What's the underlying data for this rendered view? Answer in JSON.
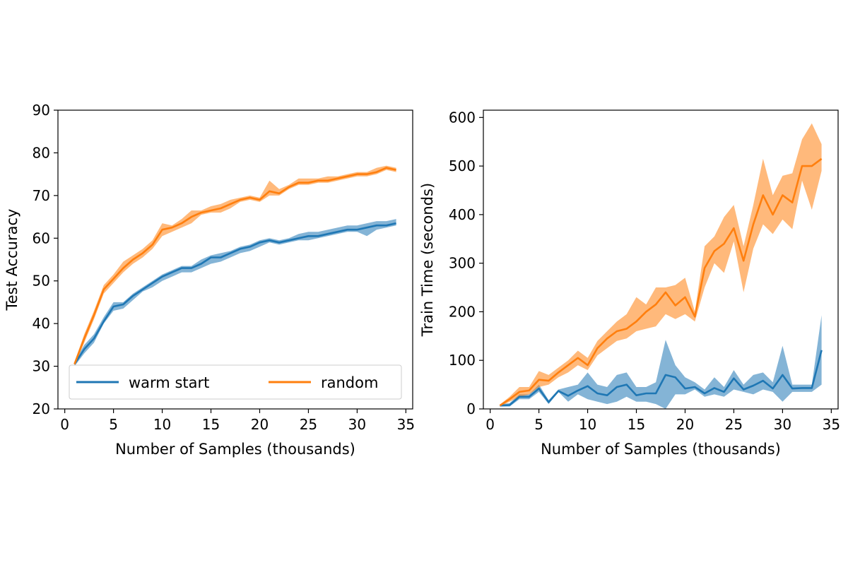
{
  "chart_data": [
    {
      "type": "line",
      "xlabel": "Number of Samples (thousands)",
      "ylabel": "Test Accuracy",
      "xlim": [
        -0.7,
        35.7
      ],
      "ylim": [
        20,
        90
      ],
      "xticks": [
        0,
        5,
        10,
        15,
        20,
        25,
        30,
        35
      ],
      "yticks": [
        20,
        30,
        40,
        50,
        60,
        70,
        80,
        90
      ],
      "grid": false,
      "legend": "bottom",
      "x": [
        1,
        2,
        3,
        4,
        5,
        6,
        7,
        8,
        9,
        10,
        11,
        12,
        13,
        14,
        15,
        16,
        17,
        18,
        19,
        20,
        21,
        22,
        23,
        24,
        25,
        26,
        27,
        28,
        29,
        30,
        31,
        32,
        33,
        34
      ],
      "series": [
        {
          "name": "warm start",
          "color": "#1f77b4",
          "mean": [
            30.5,
            34.0,
            36.5,
            40.5,
            44.0,
            44.5,
            46.5,
            48.0,
            49.5,
            51.0,
            52.0,
            53.0,
            53.0,
            54.0,
            55.5,
            55.5,
            56.5,
            57.5,
            58.0,
            59.0,
            59.5,
            59.0,
            59.5,
            60.0,
            60.5,
            60.5,
            61.0,
            61.5,
            62.0,
            62.0,
            62.5,
            63.0,
            63.0,
            63.5
          ],
          "lower": [
            30.0,
            33.0,
            35.5,
            40.0,
            43.0,
            43.5,
            45.5,
            47.5,
            48.5,
            50.0,
            51.0,
            52.0,
            52.0,
            53.0,
            54.0,
            54.5,
            55.5,
            56.5,
            57.0,
            58.0,
            59.0,
            58.5,
            59.0,
            59.5,
            59.5,
            60.0,
            60.5,
            61.0,
            61.5,
            61.5,
            60.5,
            62.0,
            62.5,
            63.0
          ],
          "upper": [
            31.0,
            35.0,
            37.5,
            41.5,
            45.0,
            45.0,
            47.0,
            48.5,
            50.0,
            51.5,
            52.5,
            53.5,
            53.5,
            55.0,
            56.0,
            56.5,
            57.0,
            58.0,
            58.5,
            59.5,
            60.0,
            59.5,
            60.0,
            61.0,
            61.5,
            61.5,
            62.0,
            62.5,
            63.0,
            63.0,
            63.5,
            64.0,
            64.0,
            64.5
          ]
        },
        {
          "name": "random",
          "color": "#ff7f0e",
          "mean": [
            30.5,
            36.5,
            42.0,
            48.0,
            50.5,
            53.0,
            55.0,
            56.5,
            58.5,
            62.0,
            62.5,
            63.5,
            65.0,
            66.0,
            66.5,
            67.0,
            68.0,
            69.0,
            69.5,
            69.0,
            71.0,
            70.5,
            72.0,
            73.0,
            73.0,
            73.5,
            73.5,
            74.0,
            74.5,
            75.0,
            75.0,
            75.5,
            76.5,
            76.0
          ],
          "lower": [
            30.0,
            35.5,
            41.0,
            47.0,
            49.5,
            52.0,
            54.0,
            55.5,
            57.5,
            60.5,
            61.5,
            62.5,
            63.5,
            65.5,
            66.0,
            66.0,
            67.0,
            68.5,
            69.0,
            68.5,
            70.0,
            70.0,
            71.5,
            72.5,
            72.5,
            73.0,
            73.0,
            73.5,
            74.0,
            74.5,
            74.5,
            75.0,
            76.0,
            75.5
          ],
          "upper": [
            31.0,
            37.5,
            43.0,
            49.0,
            51.5,
            54.5,
            56.0,
            57.5,
            59.5,
            63.5,
            63.0,
            64.5,
            66.5,
            66.5,
            67.5,
            68.0,
            69.0,
            69.5,
            70.0,
            69.5,
            73.5,
            71.5,
            72.5,
            74.0,
            74.0,
            74.0,
            74.5,
            74.5,
            75.0,
            75.5,
            75.5,
            76.5,
            77.0,
            76.5
          ]
        }
      ]
    },
    {
      "type": "line",
      "xlabel": "Number of Samples (thousands)",
      "ylabel": "Train Time (seconds)",
      "xlim": [
        -0.7,
        35.7
      ],
      "ylim": [
        0,
        615
      ],
      "xticks": [
        0,
        5,
        10,
        15,
        20,
        25,
        30,
        35
      ],
      "yticks": [
        0,
        100,
        200,
        300,
        400,
        500,
        600
      ],
      "grid": false,
      "x": [
        1,
        2,
        3,
        4,
        5,
        6,
        7,
        8,
        9,
        10,
        11,
        12,
        13,
        14,
        15,
        16,
        17,
        18,
        19,
        20,
        21,
        22,
        23,
        24,
        25,
        26,
        27,
        28,
        29,
        30,
        31,
        32,
        33,
        34
      ],
      "series": [
        {
          "name": "warm start",
          "color": "#1f77b4",
          "mean": [
            7,
            8,
            25,
            25,
            42,
            14,
            37,
            27,
            38,
            47,
            32,
            28,
            45,
            50,
            28,
            32,
            32,
            70,
            65,
            42,
            45,
            32,
            43,
            35,
            63,
            40,
            48,
            58,
            42,
            70,
            42,
            43,
            43,
            121
          ],
          "lower": [
            5,
            5,
            20,
            20,
            35,
            10,
            35,
            15,
            30,
            20,
            15,
            10,
            15,
            25,
            15,
            15,
            10,
            0,
            30,
            30,
            40,
            25,
            30,
            25,
            40,
            35,
            30,
            40,
            35,
            15,
            35,
            35,
            35,
            50
          ],
          "upper": [
            9,
            12,
            30,
            30,
            50,
            18,
            40,
            45,
            50,
            75,
            50,
            45,
            70,
            75,
            45,
            45,
            55,
            142,
            90,
            65,
            55,
            40,
            65,
            45,
            80,
            50,
            70,
            75,
            55,
            130,
            50,
            50,
            50,
            193
          ]
        },
        {
          "name": "random",
          "color": "#ff7f0e",
          "mean": [
            7,
            20,
            35,
            38,
            60,
            58,
            75,
            90,
            105,
            90,
            125,
            145,
            160,
            165,
            180,
            200,
            215,
            240,
            213,
            230,
            190,
            290,
            325,
            340,
            372,
            305,
            380,
            440,
            400,
            440,
            425,
            500,
            500,
            515
          ],
          "lower": [
            5,
            15,
            25,
            30,
            45,
            50,
            65,
            75,
            90,
            80,
            110,
            125,
            140,
            145,
            160,
            165,
            170,
            195,
            185,
            195,
            180,
            250,
            300,
            280,
            345,
            240,
            330,
            380,
            360,
            390,
            370,
            470,
            410,
            490
          ],
          "upper": [
            9,
            25,
            45,
            45,
            78,
            70,
            85,
            100,
            120,
            105,
            140,
            160,
            180,
            195,
            230,
            215,
            250,
            250,
            255,
            270,
            200,
            335,
            355,
            395,
            420,
            335,
            420,
            515,
            440,
            480,
            485,
            555,
            588,
            545
          ]
        }
      ]
    }
  ]
}
